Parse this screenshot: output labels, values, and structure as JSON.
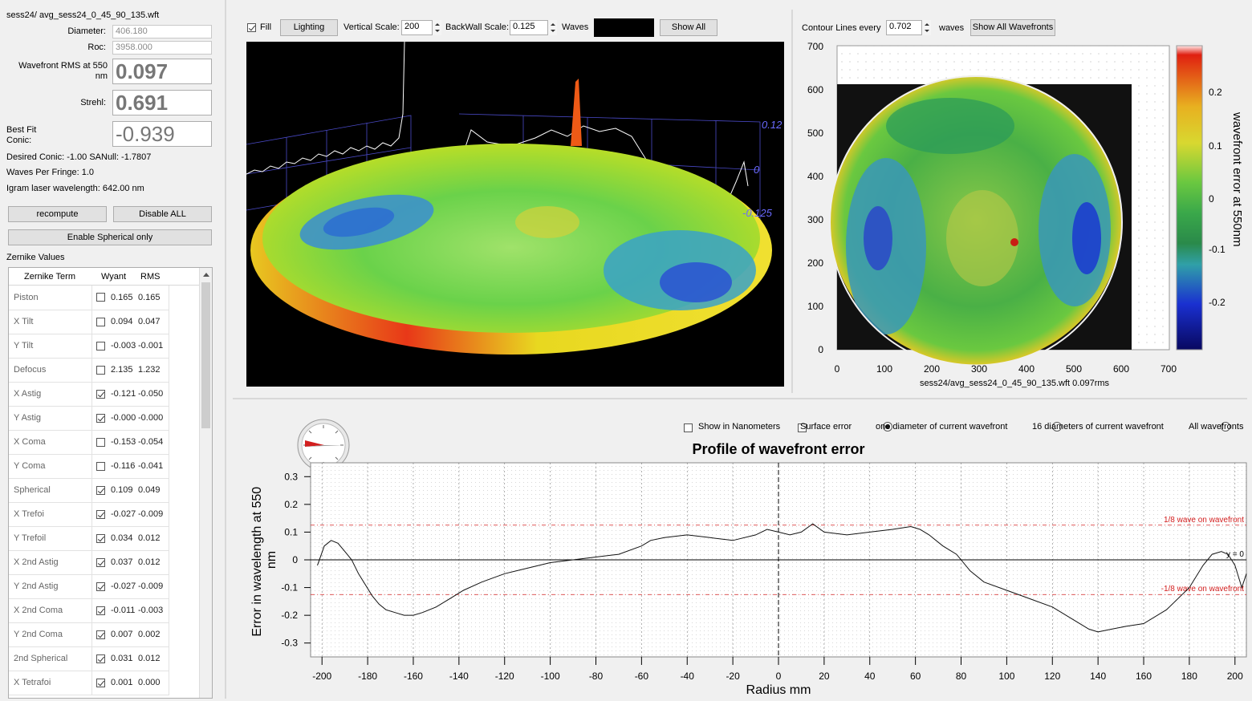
{
  "file": {
    "title": "sess24/ avg_sess24_0_45_90_135.wft"
  },
  "params": {
    "diameter_label": "Diameter:",
    "diameter_value": "406.180",
    "roc_label": "Roc:",
    "roc_value": "3958.000",
    "rms_label": "Wavefront RMS at 550 nm",
    "rms_value": "0.097",
    "strehl_label": "Strehl:",
    "strehl_value": "0.691",
    "conic_label": "Best Fit Conic:",
    "conic_value": "-0.939",
    "desired_conic": "Desired Conic:  -1.00 SANull: -1.7807",
    "waves_per_fringe": "Waves Per Fringe: 1.0",
    "laser": "Igram laser wavelength: 642.00 nm"
  },
  "buttons": {
    "recompute": "recompute",
    "disable_all": "Disable ALL",
    "enable_spherical": "Enable Spherical only"
  },
  "zernike": {
    "section_label": "Zernike Values",
    "headers": {
      "term": "Zernike Term",
      "wyant": "Wyant",
      "rms": "RMS"
    },
    "rows": [
      {
        "term": "Piston",
        "checked": false,
        "wyant": "0.165",
        "rms": "0.165"
      },
      {
        "term": "X Tilt",
        "checked": false,
        "wyant": "0.094",
        "rms": "0.047"
      },
      {
        "term": "Y Tilt",
        "checked": false,
        "wyant": "-0.003",
        "rms": "-0.001"
      },
      {
        "term": "Defocus",
        "checked": false,
        "wyant": "2.135",
        "rms": "1.232"
      },
      {
        "term": "X Astig",
        "checked": true,
        "wyant": "-0.121",
        "rms": "-0.050"
      },
      {
        "term": "Y Astig",
        "checked": true,
        "wyant": "-0.000",
        "rms": "-0.000"
      },
      {
        "term": "X Coma",
        "checked": false,
        "wyant": "-0.153",
        "rms": "-0.054"
      },
      {
        "term": "Y Coma",
        "checked": false,
        "wyant": "-0.116",
        "rms": "-0.041"
      },
      {
        "term": "Spherical",
        "checked": true,
        "wyant": "0.109",
        "rms": "0.049"
      },
      {
        "term": "X Trefoi",
        "checked": true,
        "wyant": "-0.027",
        "rms": "-0.009"
      },
      {
        "term": "Y Trefoil",
        "checked": true,
        "wyant": "0.034",
        "rms": "0.012"
      },
      {
        "term": "X 2nd Astig",
        "checked": true,
        "wyant": "0.037",
        "rms": "0.012"
      },
      {
        "term": "Y 2nd Astig",
        "checked": true,
        "wyant": "-0.027",
        "rms": "-0.009"
      },
      {
        "term": "X 2nd Coma",
        "checked": true,
        "wyant": "-0.011",
        "rms": "-0.003"
      },
      {
        "term": "Y 2nd Coma",
        "checked": true,
        "wyant": "0.007",
        "rms": "0.002"
      },
      {
        "term": "2nd Spherical",
        "checked": true,
        "wyant": "0.031",
        "rms": "0.012"
      },
      {
        "term": "X Tetrafoi",
        "checked": true,
        "wyant": "0.001",
        "rms": "0.000"
      }
    ]
  },
  "view3d": {
    "fill_label": "Fill",
    "fill_checked": true,
    "lighting": "Lighting",
    "vscale_label": "Vertical Scale:",
    "vscale_value": "200",
    "backwall_label": "BackWall Scale:",
    "backwall_value": "0.125",
    "waves_label": "Waves",
    "show_all": "Show All",
    "axis_labels": [
      "0.12",
      "0",
      "-0.125"
    ]
  },
  "contour": {
    "label": "Contour Lines every",
    "value": "0.702",
    "unit": "waves",
    "show_all": "Show All Wavefronts",
    "y_ticks": [
      "700",
      "600",
      "500",
      "400",
      "300",
      "200",
      "100",
      "0"
    ],
    "x_ticks": [
      "0",
      "100",
      "200",
      "300",
      "400",
      "500",
      "600",
      "700"
    ],
    "caption": "sess24/avg_sess24_0_45_90_135.wft  0.097rms",
    "colorbar_label": "wavefront error at 550nm",
    "colorbar_ticks": [
      "0.2",
      "0.1",
      "0",
      "-0.1",
      "-0.2"
    ],
    "colors": {
      "red": "#c81e14",
      "yellow": "#e6d21e",
      "green": "#4bb43c",
      "blue": "#1428c8"
    }
  },
  "profile": {
    "options": [
      {
        "label": "Show in Nanometers",
        "kind": "check",
        "on": false
      },
      {
        "label": "Surface error",
        "kind": "check",
        "on": false
      },
      {
        "label": "one diameter of current wavefront",
        "kind": "radio",
        "on": true
      },
      {
        "label": "16 diameters of current wavefront",
        "kind": "radio",
        "on": false
      },
      {
        "label": "All wavefronts",
        "kind": "radio",
        "on": false
      }
    ]
  },
  "chart_data": {
    "type": "line",
    "title": "Profile of wavefront error",
    "xlabel": "Radius mm",
    "ylabel": "Error in wavelength at 550 nm",
    "xlim": [
      -205,
      205
    ],
    "ylim": [
      -0.35,
      0.35
    ],
    "xticks": [
      -200,
      -180,
      -160,
      -140,
      -120,
      -100,
      -80,
      -60,
      -40,
      -20,
      0,
      20,
      40,
      60,
      80,
      100,
      120,
      140,
      160,
      180,
      200
    ],
    "yticks": [
      0.3,
      0.2,
      0.1,
      0,
      -0.1,
      -0.2,
      -0.3
    ],
    "x": [
      -202,
      -199,
      -196,
      -193,
      -190,
      -187,
      -184,
      -181,
      -178,
      -175,
      -172,
      -168,
      -164,
      -160,
      -156,
      -150,
      -144,
      -138,
      -130,
      -120,
      -110,
      -100,
      -90,
      -80,
      -70,
      -60,
      -56,
      -50,
      -40,
      -30,
      -20,
      -10,
      -5,
      0,
      5,
      10,
      15,
      20,
      30,
      40,
      50,
      58,
      62,
      66,
      72,
      78,
      84,
      90,
      100,
      110,
      120,
      130,
      136,
      140,
      146,
      152,
      160,
      170,
      180,
      186,
      190,
      194,
      197,
      200,
      203,
      205
    ],
    "y": [
      -0.02,
      0.05,
      0.07,
      0.06,
      0.03,
      0.0,
      -0.05,
      -0.09,
      -0.13,
      -0.16,
      -0.18,
      -0.19,
      -0.2,
      -0.2,
      -0.19,
      -0.17,
      -0.14,
      -0.11,
      -0.08,
      -0.05,
      -0.03,
      -0.01,
      0.0,
      0.01,
      0.02,
      0.05,
      0.07,
      0.08,
      0.09,
      0.08,
      0.07,
      0.09,
      0.11,
      0.1,
      0.09,
      0.1,
      0.13,
      0.1,
      0.09,
      0.1,
      0.11,
      0.12,
      0.11,
      0.09,
      0.05,
      0.02,
      -0.04,
      -0.08,
      -0.11,
      -0.14,
      -0.17,
      -0.22,
      -0.25,
      -0.26,
      -0.25,
      -0.24,
      -0.23,
      -0.18,
      -0.1,
      -0.02,
      0.02,
      0.03,
      0.02,
      -0.02,
      -0.1,
      -0.05
    ],
    "reference_lines": [
      {
        "y": 0.125,
        "label": "1/8 wave on wavefront",
        "color": "#d42020"
      },
      {
        "y": -0.125,
        "label": "-1/8 wave on wavefront",
        "color": "#d42020"
      },
      {
        "y": 0,
        "label": "y = 0",
        "color": "#000000"
      }
    ],
    "grid": true
  }
}
